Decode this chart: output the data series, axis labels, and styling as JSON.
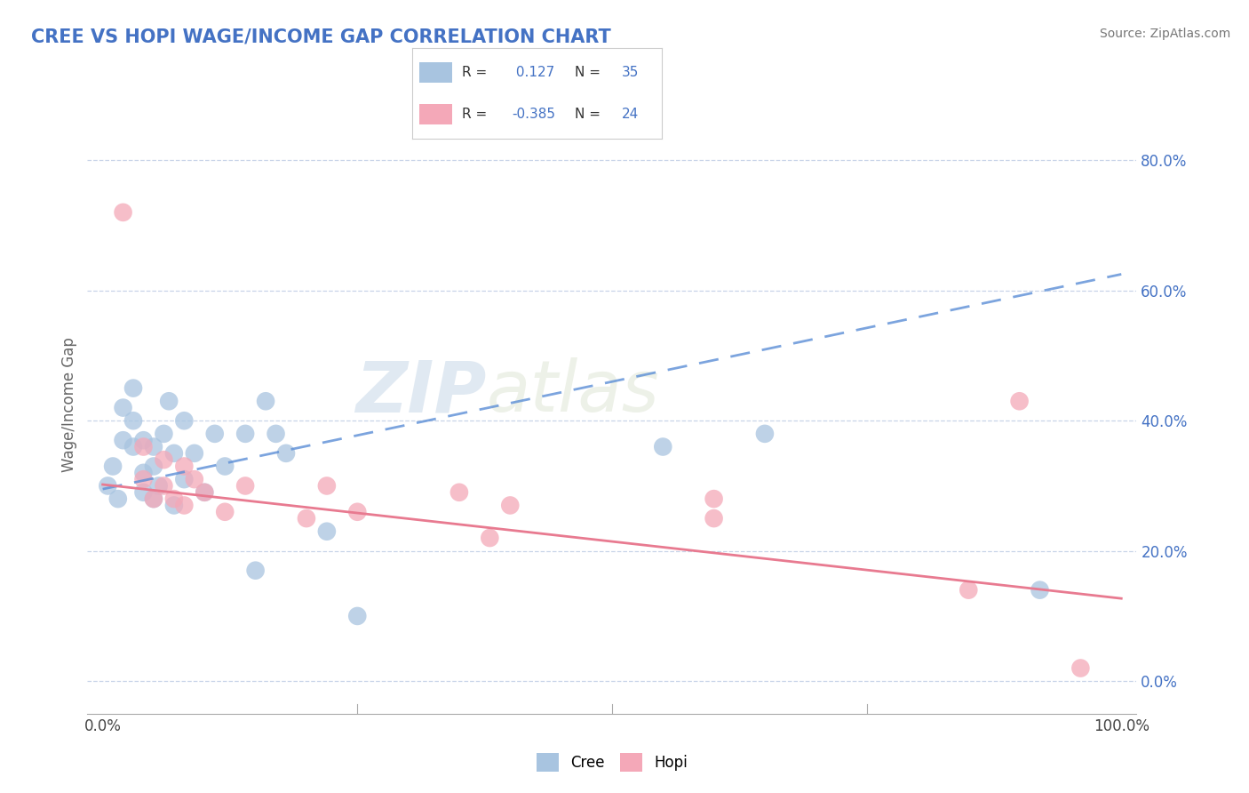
{
  "title": "CREE VS HOPI WAGE/INCOME GAP CORRELATION CHART",
  "source": "Source: ZipAtlas.com",
  "xlabel": "",
  "ylabel": "Wage/Income Gap",
  "xlim": [
    0.0,
    1.0
  ],
  "ylim": [
    -0.05,
    0.9
  ],
  "xticks": [
    0.0,
    0.25,
    0.5,
    0.75,
    1.0
  ],
  "xticklabels": [
    "0.0%",
    "",
    "",
    "",
    "100.0%"
  ],
  "yticks_right": [
    0.0,
    0.2,
    0.4,
    0.6,
    0.8
  ],
  "ytick_right_labels": [
    "0.0%",
    "20.0%",
    "40.0%",
    "60.0%",
    "80.0%"
  ],
  "cree_color": "#a8c4e0",
  "hopi_color": "#f4a8b8",
  "cree_line_color": "#5b8ed6",
  "hopi_line_color": "#e87a90",
  "background_color": "#ffffff",
  "grid_color": "#c8d4e8",
  "cree_R": 0.127,
  "cree_N": 35,
  "hopi_R": -0.385,
  "hopi_N": 24,
  "watermark_zip": "ZIP",
  "watermark_atlas": "atlas",
  "cree_x": [
    0.005,
    0.01,
    0.015,
    0.02,
    0.02,
    0.03,
    0.03,
    0.03,
    0.04,
    0.04,
    0.04,
    0.05,
    0.05,
    0.05,
    0.055,
    0.06,
    0.065,
    0.07,
    0.07,
    0.08,
    0.08,
    0.09,
    0.1,
    0.11,
    0.12,
    0.14,
    0.15,
    0.16,
    0.17,
    0.18,
    0.22,
    0.25,
    0.55,
    0.65,
    0.92
  ],
  "cree_y": [
    0.3,
    0.33,
    0.28,
    0.37,
    0.42,
    0.36,
    0.4,
    0.45,
    0.32,
    0.37,
    0.29,
    0.33,
    0.28,
    0.36,
    0.3,
    0.38,
    0.43,
    0.35,
    0.27,
    0.4,
    0.31,
    0.35,
    0.29,
    0.38,
    0.33,
    0.38,
    0.17,
    0.43,
    0.38,
    0.35,
    0.23,
    0.1,
    0.36,
    0.38,
    0.14
  ],
  "hopi_x": [
    0.02,
    0.04,
    0.04,
    0.05,
    0.06,
    0.06,
    0.07,
    0.08,
    0.08,
    0.09,
    0.1,
    0.12,
    0.14,
    0.2,
    0.22,
    0.25,
    0.35,
    0.38,
    0.4,
    0.6,
    0.6,
    0.85,
    0.9,
    0.96
  ],
  "hopi_y": [
    0.72,
    0.36,
    0.31,
    0.28,
    0.34,
    0.3,
    0.28,
    0.33,
    0.27,
    0.31,
    0.29,
    0.26,
    0.3,
    0.25,
    0.3,
    0.26,
    0.29,
    0.22,
    0.27,
    0.28,
    0.25,
    0.14,
    0.43,
    0.02
  ],
  "cree_line_x": [
    0.0,
    0.25,
    1.0
  ],
  "hopi_line_x": [
    0.0,
    1.0
  ]
}
